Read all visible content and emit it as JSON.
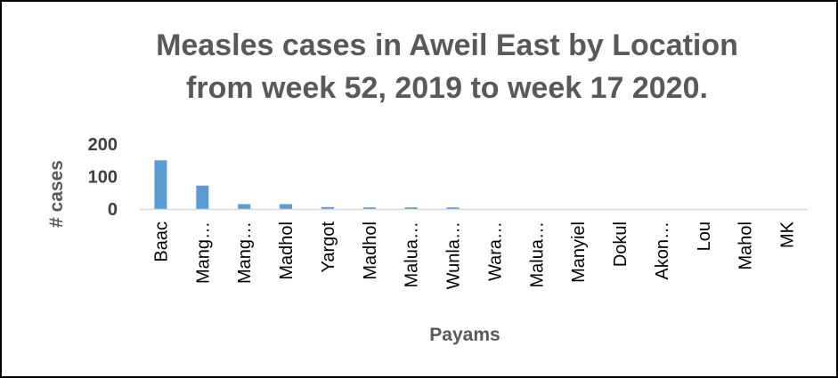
{
  "chart_data": {
    "type": "bar",
    "title_lines": [
      "Measles cases in Aweil East by Location",
      "from week 52, 2019 to week 17 2020."
    ],
    "xlabel": "Payams",
    "ylabel": "# cases",
    "ylim": [
      0,
      200
    ],
    "yticks": [
      "0",
      "100",
      "200"
    ],
    "categories": [
      "Baac",
      "Mang…",
      "Mang…",
      "Madhol",
      "Yargot",
      "Madhol",
      "Malua…",
      "Wunla…",
      "Wara…",
      "Malua…",
      "Manyiel",
      "Dokul",
      "Akon…",
      "Lou",
      "Mahol",
      "MK"
    ],
    "values": [
      150,
      72,
      15,
      15,
      6,
      5,
      5,
      5,
      0,
      0,
      0,
      0,
      0,
      0,
      0,
      0
    ],
    "bar_color": "#5B9BD5",
    "axis_color": "#D9D9D9",
    "grid": false,
    "legend": "none"
  }
}
